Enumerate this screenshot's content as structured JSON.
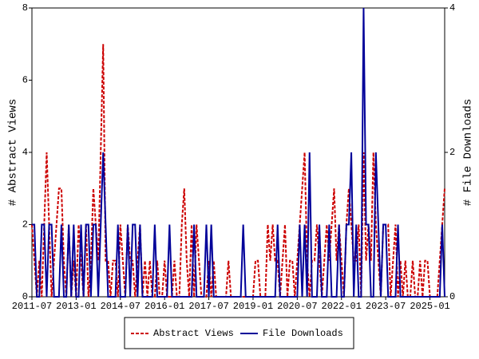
{
  "chart_data": {
    "type": "line",
    "ylabel": "# Abstract Views",
    "y2label": "# File Downloads",
    "x": [
      "2011-07",
      "2011-08",
      "2011-09",
      "2011-10",
      "2011-11",
      "2011-12",
      "2012-01",
      "2012-02",
      "2012-03",
      "2012-04",
      "2012-05",
      "2012-06",
      "2012-07",
      "2012-08",
      "2012-09",
      "2012-10",
      "2012-11",
      "2012-12",
      "2013-01",
      "2013-02",
      "2013-03",
      "2013-04",
      "2013-05",
      "2013-06",
      "2013-07",
      "2013-08",
      "2013-09",
      "2013-10",
      "2013-11",
      "2013-12",
      "2014-01",
      "2014-02",
      "2014-03",
      "2014-04",
      "2014-05",
      "2014-06",
      "2014-07",
      "2014-08",
      "2014-09",
      "2014-10",
      "2014-11",
      "2014-12",
      "2015-01",
      "2015-02",
      "2015-03",
      "2015-04",
      "2015-05",
      "2015-06",
      "2015-07",
      "2015-08",
      "2015-09",
      "2015-10",
      "2015-11",
      "2015-12",
      "2016-01",
      "2016-02",
      "2016-03",
      "2016-04",
      "2016-05",
      "2016-06",
      "2016-07",
      "2016-08",
      "2016-09",
      "2016-10",
      "2016-11",
      "2016-12",
      "2017-01",
      "2017-02",
      "2017-03",
      "2017-04",
      "2017-05",
      "2017-06",
      "2017-07",
      "2017-08",
      "2017-09",
      "2017-10",
      "2017-11",
      "2017-12",
      "2018-01",
      "2018-02",
      "2018-03",
      "2018-04",
      "2018-05",
      "2018-06",
      "2018-07",
      "2018-08",
      "2018-09",
      "2018-10",
      "2018-11",
      "2018-12",
      "2019-01",
      "2019-02",
      "2019-03",
      "2019-04",
      "2019-05",
      "2019-06",
      "2019-07",
      "2019-08",
      "2019-09",
      "2019-10",
      "2019-11",
      "2019-12",
      "2020-01",
      "2020-02",
      "2020-03",
      "2020-04",
      "2020-05",
      "2020-06",
      "2020-07",
      "2020-08",
      "2020-09",
      "2020-10",
      "2020-11",
      "2020-12",
      "2021-01",
      "2021-02",
      "2021-03",
      "2021-04",
      "2021-05",
      "2021-06",
      "2021-07",
      "2021-08",
      "2021-09",
      "2021-10",
      "2021-11",
      "2021-12",
      "2022-01",
      "2022-02",
      "2022-03",
      "2022-04",
      "2022-05",
      "2022-06",
      "2022-07",
      "2022-08",
      "2022-09",
      "2022-10",
      "2022-11",
      "2022-12",
      "2023-01",
      "2023-02",
      "2023-03",
      "2023-04",
      "2023-05",
      "2023-06",
      "2023-07",
      "2023-08",
      "2023-09",
      "2023-10",
      "2023-11",
      "2023-12",
      "2024-01",
      "2024-02",
      "2024-03",
      "2024-04",
      "2024-05",
      "2024-06",
      "2024-07",
      "2024-08",
      "2024-09",
      "2024-10",
      "2024-11",
      "2024-12",
      "2025-01",
      "2025-02",
      "2025-03",
      "2025-04",
      "2025-05",
      "2025-06",
      "2025-07"
    ],
    "xlim": [
      "2011-07",
      "2025-07"
    ],
    "xticks": [
      "2011-07",
      "2013-01",
      "2014-07",
      "2016-01",
      "2017-07",
      "2019-01",
      "2020-07",
      "2022-01",
      "2023-07",
      "2025-01"
    ],
    "ylim": [
      0,
      8
    ],
    "yticks": [
      0,
      2,
      4,
      6,
      8
    ],
    "y2lim": [
      0,
      4
    ],
    "y2ticks": [
      0,
      2,
      4
    ],
    "legend": "bottom",
    "series": [
      {
        "name": "Abstract Views",
        "color": "#cc0000",
        "line_style": "dashed",
        "values": [
          2,
          1,
          0,
          1,
          0,
          2,
          4,
          2,
          0,
          1,
          2,
          3,
          3,
          1,
          0,
          2,
          0,
          1,
          0,
          2,
          1,
          0,
          2,
          0,
          1,
          3,
          2,
          1,
          4,
          7,
          1,
          1,
          0,
          1,
          1,
          0,
          2,
          1,
          0,
          2,
          1,
          1,
          0,
          1,
          2,
          0,
          1,
          0,
          1,
          0,
          0,
          1,
          0,
          0,
          1,
          0,
          0,
          0,
          1,
          0,
          0,
          2,
          3,
          1,
          0,
          2,
          0,
          2,
          1,
          0,
          0,
          0,
          1,
          0,
          1,
          0,
          0,
          0,
          0,
          0,
          1,
          0,
          0,
          0,
          0,
          0,
          0,
          0,
          0,
          0,
          0,
          1,
          1,
          0,
          0,
          0,
          2,
          1,
          2,
          1,
          1,
          0,
          1,
          2,
          0,
          1,
          1,
          0,
          1,
          2,
          3,
          4,
          1,
          0,
          1,
          1,
          2,
          1,
          0,
          1,
          2,
          1,
          2,
          3,
          1,
          2,
          1,
          0,
          2,
          3,
          2,
          1,
          1,
          2,
          0,
          4,
          1,
          2,
          1,
          4,
          2,
          1,
          0,
          2,
          2,
          2,
          0,
          1,
          2,
          0,
          1,
          0,
          1,
          0,
          0,
          1,
          0,
          0,
          1,
          0,
          1,
          1,
          0,
          0,
          0,
          0,
          1,
          2,
          3
        ]
      },
      {
        "name": "File Downloads",
        "color": "#000099",
        "line_style": "solid",
        "axis": "y2",
        "values": [
          1,
          1,
          0,
          0,
          1,
          1,
          0,
          1,
          1,
          0,
          0,
          0,
          1,
          0,
          0,
          1,
          0,
          1,
          0,
          0,
          1,
          0,
          1,
          1,
          0,
          1,
          1,
          0,
          1,
          2,
          1,
          0,
          0,
          0,
          0,
          1,
          0,
          0,
          0,
          1,
          0,
          1,
          1,
          0,
          1,
          0,
          0,
          0,
          0,
          0,
          1,
          0,
          0,
          0,
          0,
          0,
          1,
          0,
          0,
          0,
          0,
          0,
          0,
          0,
          0,
          0,
          1,
          0,
          0,
          0,
          0,
          1,
          0,
          1,
          0,
          0,
          0,
          0,
          0,
          0,
          0,
          0,
          0,
          0,
          0,
          0,
          1,
          0,
          0,
          0,
          0,
          0,
          0,
          0,
          0,
          0,
          0,
          0,
          0,
          0,
          1,
          0,
          0,
          0,
          0,
          0,
          0,
          0,
          0,
          1,
          0,
          1,
          0,
          2,
          0,
          0,
          0,
          1,
          0,
          0,
          0,
          1,
          0,
          0,
          0,
          1,
          0,
          0,
          1,
          1,
          2,
          0,
          1,
          0,
          0,
          4,
          1,
          1,
          0,
          0,
          2,
          1,
          0,
          1,
          1,
          0,
          0,
          0,
          0,
          1,
          0,
          0,
          0,
          0,
          0,
          0,
          0,
          0,
          0,
          0,
          0,
          0,
          0,
          0,
          0,
          0,
          0,
          1,
          0
        ]
      }
    ]
  }
}
